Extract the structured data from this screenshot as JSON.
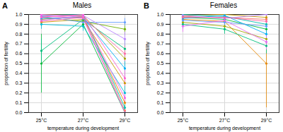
{
  "chart_data": [
    {
      "type": "line",
      "title": "Males",
      "annotations": [
        "A"
      ],
      "xlabel": "temperature during development",
      "ylabel": "proportion of fertility",
      "categories": [
        "25°C",
        "27°C",
        "29°C"
      ],
      "ylim": [
        0,
        1
      ],
      "yticks": [
        {
          "value": 0,
          "label": "0.0"
        },
        0.1,
        0.2,
        0.3,
        0.4,
        0.5,
        0.6,
        0.7,
        0.8,
        0.9,
        {
          "value": 1,
          "label": "1.0"
        }
      ],
      "grid": true,
      "marker": "circle",
      "series": [
        {
          "color": "#F8766D",
          "values": [
            0.98,
            0.97,
            0.02
          ],
          "errors": [
            0.02,
            0.03,
            0.02
          ]
        },
        {
          "color": "#E58700",
          "values": [
            0.95,
            0.98,
            0.1
          ],
          "errors": [
            0.03,
            0.02,
            0.05
          ]
        },
        {
          "color": "#C99800",
          "values": [
            0.92,
            0.95,
            0.3
          ],
          "errors": [
            0.04,
            0.03,
            0.08
          ]
        },
        {
          "color": "#A3A500",
          "values": [
            1.0,
            0.99,
            0.55
          ],
          "errors": [
            0.0,
            0.01,
            0.08
          ]
        },
        {
          "color": "#6BB100",
          "values": [
            0.97,
            0.93,
            0.85
          ],
          "errors": [
            0.02,
            0.04,
            0.06
          ]
        },
        {
          "color": "#00BA38",
          "values": [
            0.5,
            0.9,
            0.0
          ],
          "errors": [
            0.3,
            0.05,
            0.02
          ]
        },
        {
          "color": "#00BF7D",
          "values": [
            0.63,
            0.95,
            0.65
          ],
          "errors": [
            0.12,
            0.03,
            0.1
          ]
        },
        {
          "color": "#00C0AF",
          "values": [
            0.99,
            1.0,
            0.05
          ],
          "errors": [
            0.01,
            0.0,
            0.03
          ]
        },
        {
          "color": "#00BCD8",
          "values": [
            0.9,
            0.88,
            0.2
          ],
          "errors": [
            0.05,
            0.05,
            0.07
          ]
        },
        {
          "color": "#00B0F6",
          "values": [
            0.96,
            0.97,
            0.45
          ],
          "errors": [
            0.03,
            0.02,
            0.09
          ]
        },
        {
          "color": "#619CFF",
          "values": [
            0.98,
            0.92,
            0.92
          ],
          "errors": [
            0.02,
            0.04,
            0.04
          ]
        },
        {
          "color": "#B983FF",
          "values": [
            0.94,
            0.99,
            0.75
          ],
          "errors": [
            0.03,
            0.01,
            0.07
          ]
        },
        {
          "color": "#E76BF3",
          "values": [
            0.99,
            0.96,
            0.0
          ],
          "errors": [
            0.01,
            0.03,
            0.02
          ]
        },
        {
          "color": "#FD61D1",
          "values": [
            0.97,
            1.0,
            0.35
          ],
          "errors": [
            0.02,
            0.0,
            0.08
          ]
        },
        {
          "color": "#FF67A4",
          "values": [
            0.93,
            0.97,
            0.6
          ],
          "errors": [
            0.04,
            0.02,
            0.08
          ]
        },
        {
          "color": "#F564E3",
          "values": [
            1.0,
            0.98,
            0.15
          ],
          "errors": [
            0.0,
            0.02,
            0.06
          ]
        }
      ]
    },
    {
      "type": "line",
      "title": "Females",
      "annotations": [
        "B"
      ],
      "xlabel": "temperature during development",
      "ylabel": "proportion of fertility",
      "categories": [
        "25°C",
        "27°C",
        "29°C"
      ],
      "ylim": [
        0,
        1
      ],
      "yticks": [
        {
          "value": 0,
          "label": "0.0"
        },
        0.1,
        0.2,
        0.3,
        0.4,
        0.5,
        0.6,
        0.7,
        0.8,
        0.9,
        {
          "value": 1,
          "label": "1.0"
        }
      ],
      "grid": true,
      "marker": "circle",
      "series": [
        {
          "color": "#F8766D",
          "values": [
            0.98,
            0.97,
            0.95
          ],
          "errors": [
            0.02,
            0.02,
            0.03
          ]
        },
        {
          "color": "#E58700",
          "values": [
            0.95,
            0.93,
            0.5
          ],
          "errors": [
            0.03,
            0.04,
            0.45
          ]
        },
        {
          "color": "#C99800",
          "values": [
            0.99,
            1.0,
            0.97
          ],
          "errors": [
            0.01,
            0.0,
            0.02
          ]
        },
        {
          "color": "#A3A500",
          "values": [
            0.92,
            0.88,
            0.75
          ],
          "errors": [
            0.04,
            0.05,
            0.07
          ]
        },
        {
          "color": "#00BA38",
          "values": [
            0.97,
            0.95,
            0.85
          ],
          "errors": [
            0.02,
            0.03,
            0.05
          ]
        },
        {
          "color": "#00BF7D",
          "values": [
            0.9,
            0.85,
            0.68
          ],
          "errors": [
            0.05,
            0.05,
            0.08
          ]
        },
        {
          "color": "#00C0AF",
          "values": [
            1.0,
            0.98,
            0.9
          ],
          "errors": [
            0.0,
            0.02,
            0.05
          ]
        },
        {
          "color": "#00B0F6",
          "values": [
            0.96,
            0.99,
            0.8
          ],
          "errors": [
            0.03,
            0.01,
            0.06
          ]
        },
        {
          "color": "#619CFF",
          "values": [
            0.94,
            0.92,
            0.88
          ],
          "errors": [
            0.03,
            0.04,
            0.05
          ]
        },
        {
          "color": "#B983FF",
          "values": [
            0.99,
            0.96,
            1.0
          ],
          "errors": [
            0.01,
            0.03,
            0.0
          ]
        },
        {
          "color": "#E76BF3",
          "values": [
            0.88,
            0.94,
            0.72
          ],
          "errors": [
            0.06,
            0.03,
            0.08
          ]
        },
        {
          "color": "#FF67A4",
          "values": [
            0.97,
            0.97,
            0.93
          ],
          "errors": [
            0.02,
            0.02,
            0.04
          ]
        }
      ]
    }
  ]
}
